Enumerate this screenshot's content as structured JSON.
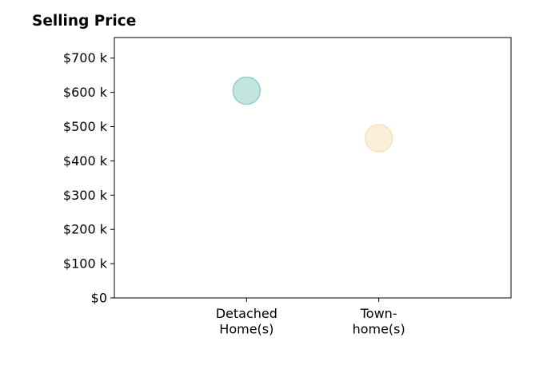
{
  "chart_data": {
    "type": "scatter",
    "title": "Selling Price",
    "categories": [
      "Detached\nHome(s)",
      "Town-\nhome(s)"
    ],
    "values": [
      605,
      466
    ],
    "value_unit": "thousand USD",
    "colors": [
      "#8fcfc7",
      "#f5e2b8"
    ],
    "yticks": [
      0,
      100,
      200,
      300,
      400,
      500,
      600,
      700
    ],
    "ytick_labels": [
      "$0",
      "$100 k",
      "$200 k",
      "$300 k",
      "$400 k",
      "$500 k",
      "$600 k",
      "$700 k"
    ],
    "ylim": [
      0,
      760
    ],
    "xlim": [
      -1,
      2
    ],
    "grid": false
  }
}
